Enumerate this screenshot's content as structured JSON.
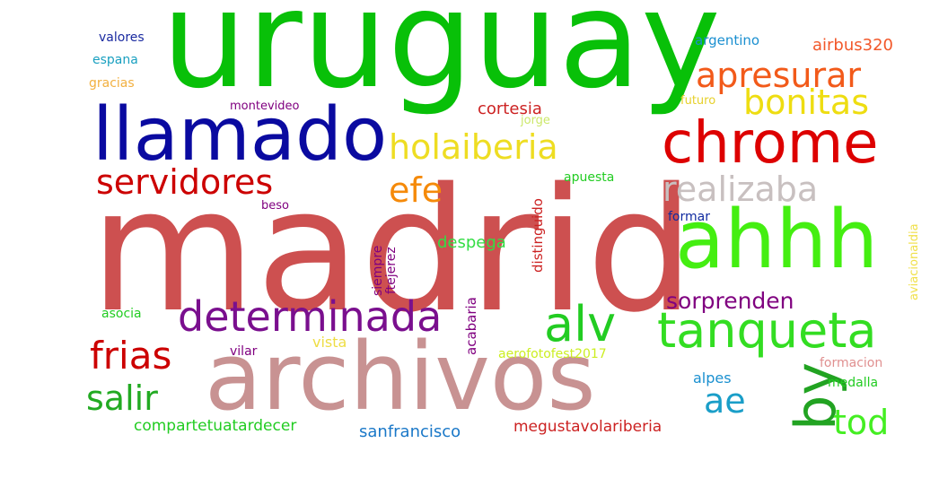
{
  "words": [
    {
      "text": "madrid",
      "color": "#cd5050"
    },
    {
      "text": "uruguay",
      "color": "#08c008"
    },
    {
      "text": "archivos",
      "color": "#c89292"
    },
    {
      "text": "chrome",
      "color": "#dd0000"
    },
    {
      "text": "llamado",
      "color": "#0a0aa0"
    },
    {
      "text": "ahhh",
      "color": "#44ee11"
    },
    {
      "text": "tanqueta",
      "color": "#33dd22"
    },
    {
      "text": "alv",
      "color": "#22cc22"
    },
    {
      "text": "determinada",
      "color": "#7a0f8e"
    },
    {
      "text": "apresurar",
      "color": "#f25a1a"
    },
    {
      "text": "holaiberia",
      "color": "#eedd22"
    },
    {
      "text": "bonitas",
      "color": "#eedd11"
    },
    {
      "text": "realizaba",
      "color": "#c8c0c0"
    },
    {
      "text": "servidores",
      "color": "#cc0000"
    },
    {
      "text": "efe",
      "color": "#f58a0a"
    },
    {
      "text": "frias",
      "color": "#cc0000"
    },
    {
      "text": "salir",
      "color": "#22aa22"
    },
    {
      "text": "by",
      "color": "#22a322"
    },
    {
      "text": "tod",
      "color": "#44ee22"
    },
    {
      "text": "ae",
      "color": "#1a9ec8"
    },
    {
      "text": "sorprenden",
      "color": "#800080"
    },
    {
      "text": "cortesia",
      "color": "#cc2222"
    },
    {
      "text": "airbus320",
      "color": "#f2582a"
    },
    {
      "text": "argentino",
      "color": "#1a8fd0"
    },
    {
      "text": "futuro",
      "color": "#e6d02a"
    },
    {
      "text": "valores",
      "color": "#1a2aa0"
    },
    {
      "text": "espana",
      "color": "#1aa0c0"
    },
    {
      "text": "gracias",
      "color": "#f2b040"
    },
    {
      "text": "montevideo",
      "color": "#800080"
    },
    {
      "text": "jorge",
      "color": "#cce86a"
    },
    {
      "text": "beso",
      "color": "#800080"
    },
    {
      "text": "apuesta",
      "color": "#22cc22"
    },
    {
      "text": "formar",
      "color": "#0f2aa0"
    },
    {
      "text": "despega",
      "color": "#33dd44"
    },
    {
      "text": "distinguido",
      "color": "#cc2222"
    },
    {
      "text": "siempre",
      "color": "#800080"
    },
    {
      "text": "ftejerez",
      "color": "#800080"
    },
    {
      "text": "acabaria",
      "color": "#800080"
    },
    {
      "text": "aviacionaldia",
      "color": "#f0e04a"
    },
    {
      "text": "asocia",
      "color": "#22cc22"
    },
    {
      "text": "vista",
      "color": "#eedd44"
    },
    {
      "text": "vilar",
      "color": "#800080"
    },
    {
      "text": "aerofotofest2017",
      "color": "#ccee22"
    },
    {
      "text": "alpes",
      "color": "#1a90d0"
    },
    {
      "text": "formacion",
      "color": "#e09090"
    },
    {
      "text": "medalla",
      "color": "#22cc22"
    },
    {
      "text": "compartetuatardecer",
      "color": "#22cc22"
    },
    {
      "text": "sanfrancisco",
      "color": "#1a78c8"
    },
    {
      "text": "megustavolariberia",
      "color": "#cc2222"
    }
  ]
}
